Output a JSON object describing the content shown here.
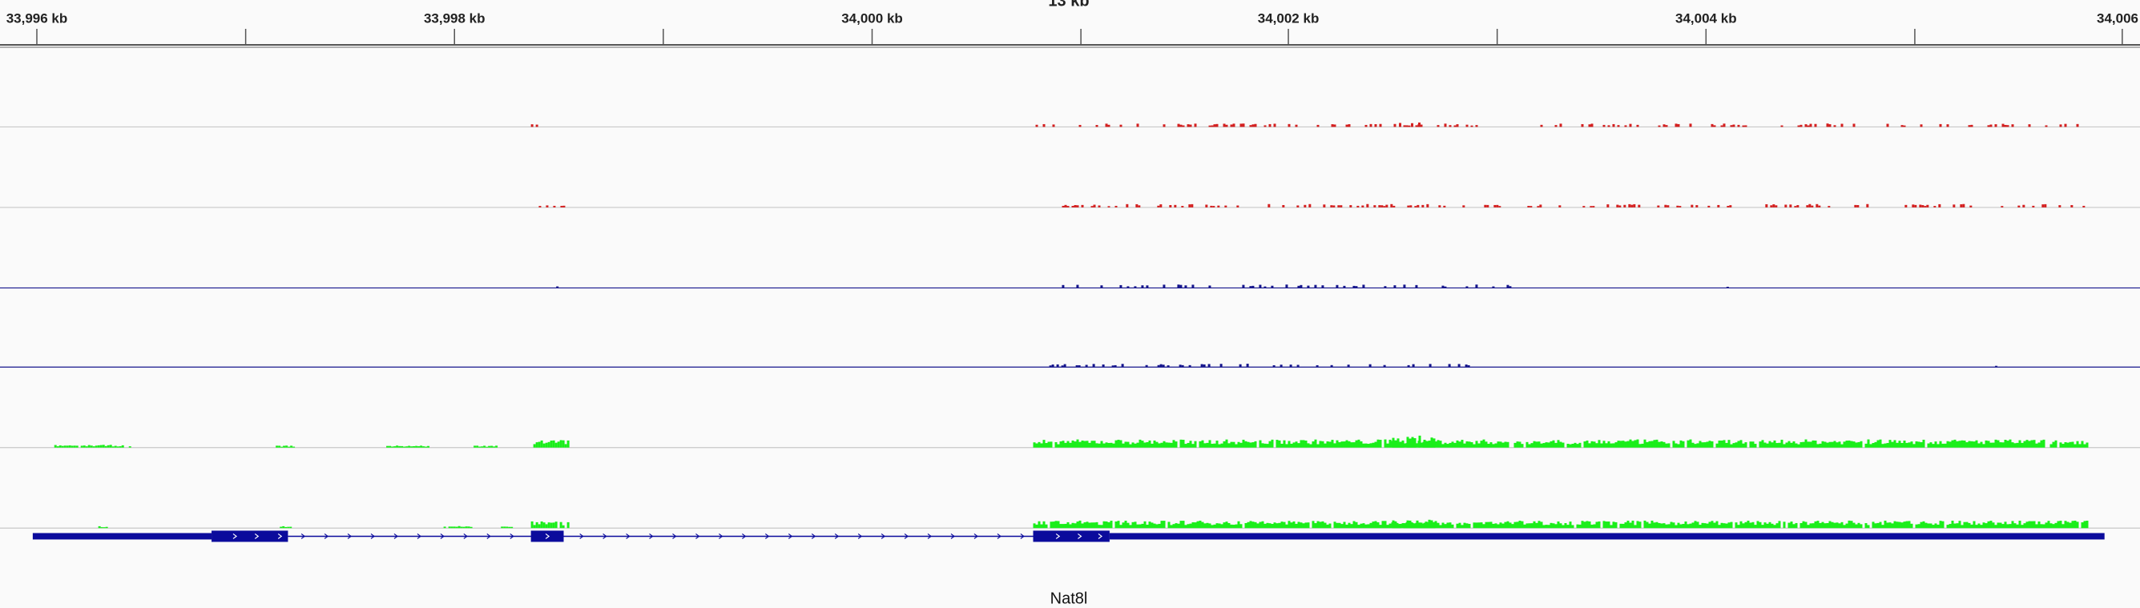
{
  "ruler": {
    "span": "13 kb",
    "ticks": [
      "33,996 kb",
      "33,998 kb",
      "34,000 kb",
      "34,002 kb",
      "34,004 kb",
      "34,006"
    ]
  },
  "gene": {
    "name": "Nat8l"
  }
}
